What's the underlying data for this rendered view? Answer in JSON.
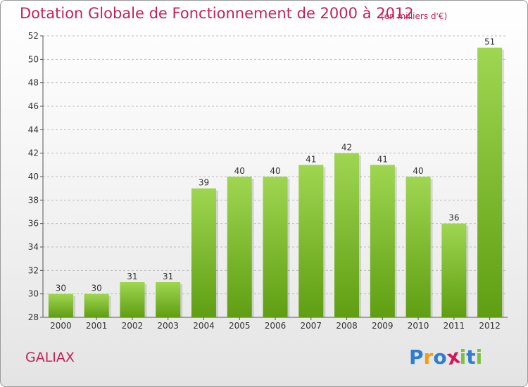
{
  "title": "Dotation Globale de Fonctionnement de 2000 à 2012",
  "subtitle": "(en milliers d'€)",
  "commune": "GALIAX",
  "logo": {
    "letters": [
      {
        "ch": "P",
        "color": "#2e7dd1"
      },
      {
        "ch": "r",
        "color": "#f39c12"
      },
      {
        "ch": "o",
        "color": "#2e7dd1"
      },
      {
        "ch": "x",
        "color": "#d4145a"
      },
      {
        "ch": "i",
        "color": "#7cc242"
      },
      {
        "ch": "t",
        "color": "#2e7dd1"
      },
      {
        "ch": "i",
        "color": "#7cc242"
      }
    ]
  },
  "colors": {
    "title": "#c0245b",
    "bar_top": "#9fd651",
    "bar_bottom": "#5f9e12",
    "grid": "#bdbdbd"
  },
  "chart_data": {
    "type": "bar",
    "title": "Dotation Globale de Fonctionnement de 2000 à 2012",
    "subtitle": "(en milliers d'€)",
    "categories": [
      "2000",
      "2001",
      "2002",
      "2003",
      "2004",
      "2005",
      "2006",
      "2007",
      "2008",
      "2009",
      "2010",
      "2011",
      "2012"
    ],
    "values": [
      30,
      30,
      31,
      31,
      39,
      40,
      40,
      41,
      42,
      41,
      40,
      36,
      51
    ],
    "ylim": [
      28,
      52
    ],
    "yticks": [
      28,
      30,
      32,
      34,
      36,
      38,
      40,
      42,
      44,
      46,
      48,
      50,
      52
    ],
    "xlabel": "",
    "ylabel": "",
    "grid": true
  }
}
